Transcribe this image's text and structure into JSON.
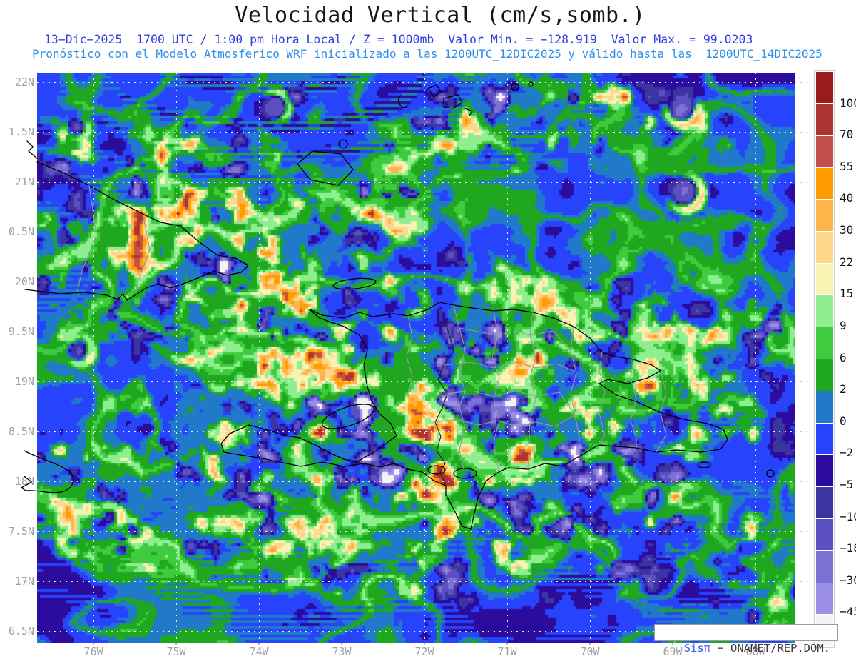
{
  "title": "Velocidad Vertical (cm/s,somb.)",
  "header": {
    "line1": "13−Dic−2025  1700 UTC / 1:00 pm Hora Local / Z = 1000mb  Valor Min. = −128.919  Valor Max. = 99.0203",
    "line2": "Pronóstico con el Modelo Atmosferico WRF inicializado a las 1200UTC_12DIC2025 y válido hasta las  1200UTC_14DIC2025"
  },
  "axes": {
    "lat_labels": [
      "22N",
      "1.5N",
      "21N",
      "0.5N",
      "20N",
      "9.5N",
      "19N",
      "8.5N",
      "18N",
      "7.5N",
      "17N",
      "6.5N"
    ],
    "lon_labels": [
      "76W",
      "75W",
      "74W",
      "73W",
      "72W",
      "71W",
      "70W",
      "69W",
      "68W"
    ]
  },
  "colorbar": {
    "boundary_labels": [
      "100",
      "70",
      "55",
      "40",
      "30",
      "22",
      "15",
      "9",
      "6",
      "2",
      "0",
      "−2",
      "−5",
      "−10",
      "−18",
      "−30",
      "−45"
    ],
    "segment_colors_top_to_bottom": [
      "#9b1b1b",
      "#ae3333",
      "#c5504b",
      "#ff9c00",
      "#fdb44a",
      "#fdd88a",
      "#f8f3b3",
      "#8fee8f",
      "#3ecc3e",
      "#1fa81f",
      "#2179c9",
      "#2743fb",
      "#2c0c9d",
      "#3b35a2",
      "#5b4fc2",
      "#7e71d6",
      "#9a8ee8",
      "#f4f4f4"
    ]
  },
  "credit": {
    "sis": "Sis",
    "pi": "π",
    "separator": " − ",
    "org": "ONAMET/REP.DOM."
  },
  "colors": {
    "title_text": "#161616",
    "subtitle1_text": "#3340e0",
    "subtitle2_text": "#2e90e8",
    "axis_label_text": "#a2a2a2",
    "ocean_base": "#2743fb",
    "coastline": "#000000",
    "admin_border": "#9a9a9a",
    "credit_text": "#3a3a3a",
    "credit_sis": "#3b5cf0",
    "credit_pi": "#7d6df2"
  }
}
